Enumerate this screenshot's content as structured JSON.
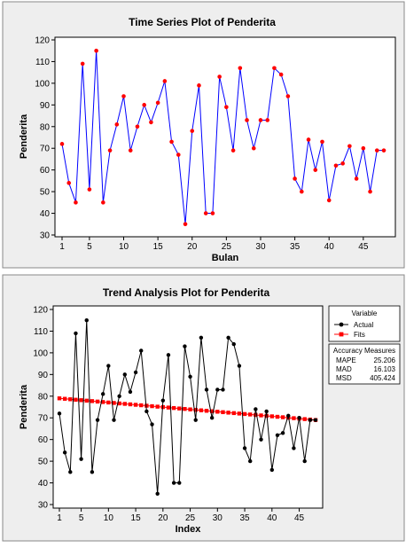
{
  "chart_data": [
    {
      "type": "line",
      "title": "Time Series Plot of Penderita",
      "xlabel": "Bulan",
      "ylabel": "Penderita",
      "xlim": [
        1,
        48
      ],
      "ylim": [
        30,
        120
      ],
      "xticks": [
        1,
        5,
        10,
        15,
        20,
        25,
        30,
        35,
        40,
        45
      ],
      "yticks": [
        30,
        40,
        50,
        60,
        70,
        80,
        90,
        100,
        110,
        120
      ],
      "grid": false,
      "line_color": "#0000ff",
      "marker_color": "#ff0000",
      "x": [
        1,
        2,
        3,
        4,
        5,
        6,
        7,
        8,
        9,
        10,
        11,
        12,
        13,
        14,
        15,
        16,
        17,
        18,
        19,
        20,
        21,
        22,
        23,
        24,
        25,
        26,
        27,
        28,
        29,
        30,
        31,
        32,
        33,
        34,
        35,
        36,
        37,
        38,
        39,
        40,
        41,
        42,
        43,
        44,
        45,
        46,
        47,
        48
      ],
      "values": [
        72,
        54,
        45,
        109,
        51,
        115,
        45,
        69,
        81,
        94,
        69,
        80,
        90,
        82,
        91,
        101,
        73,
        67,
        35,
        78,
        99,
        40,
        40,
        103,
        89,
        69,
        107,
        83,
        70,
        83,
        83,
        107,
        104,
        94,
        56,
        50,
        74,
        60,
        73,
        46,
        62,
        63,
        71,
        56,
        70,
        50,
        69,
        69
      ]
    },
    {
      "type": "line",
      "title": "Trend Analysis Plot for Penderita",
      "xlabel": "Index",
      "ylabel": "Penderita",
      "xlim": [
        1,
        48
      ],
      "ylim": [
        30,
        120
      ],
      "xticks": [
        1,
        5,
        10,
        15,
        20,
        25,
        30,
        35,
        40,
        45
      ],
      "yticks": [
        30,
        40,
        50,
        60,
        70,
        80,
        90,
        100,
        110,
        120
      ],
      "grid": false,
      "x": [
        1,
        2,
        3,
        4,
        5,
        6,
        7,
        8,
        9,
        10,
        11,
        12,
        13,
        14,
        15,
        16,
        17,
        18,
        19,
        20,
        21,
        22,
        23,
        24,
        25,
        26,
        27,
        28,
        29,
        30,
        31,
        32,
        33,
        34,
        35,
        36,
        37,
        38,
        39,
        40,
        41,
        42,
        43,
        44,
        45,
        46,
        47,
        48
      ],
      "series": [
        {
          "name": "Actual",
          "color": "#000000",
          "values": [
            72,
            54,
            45,
            109,
            51,
            115,
            45,
            69,
            81,
            94,
            69,
            80,
            90,
            82,
            91,
            101,
            73,
            67,
            35,
            78,
            99,
            40,
            40,
            103,
            89,
            69,
            107,
            83,
            70,
            83,
            83,
            107,
            104,
            94,
            56,
            50,
            74,
            60,
            73,
            46,
            62,
            63,
            71,
            56,
            70,
            50,
            69,
            69
          ]
        },
        {
          "name": "Fits",
          "color": "#ff0000",
          "fit_start": 79,
          "fit_end": 69
        }
      ],
      "legend": {
        "title": "Variable",
        "position": "right",
        "items": [
          "Actual",
          "Fits"
        ]
      },
      "accuracy": {
        "title": "Accuracy Measures",
        "rows": [
          {
            "label": "MAPE",
            "value": "25.206"
          },
          {
            "label": "MAD",
            "value": "16.103"
          },
          {
            "label": "MSD",
            "value": "405.424"
          }
        ]
      }
    }
  ]
}
